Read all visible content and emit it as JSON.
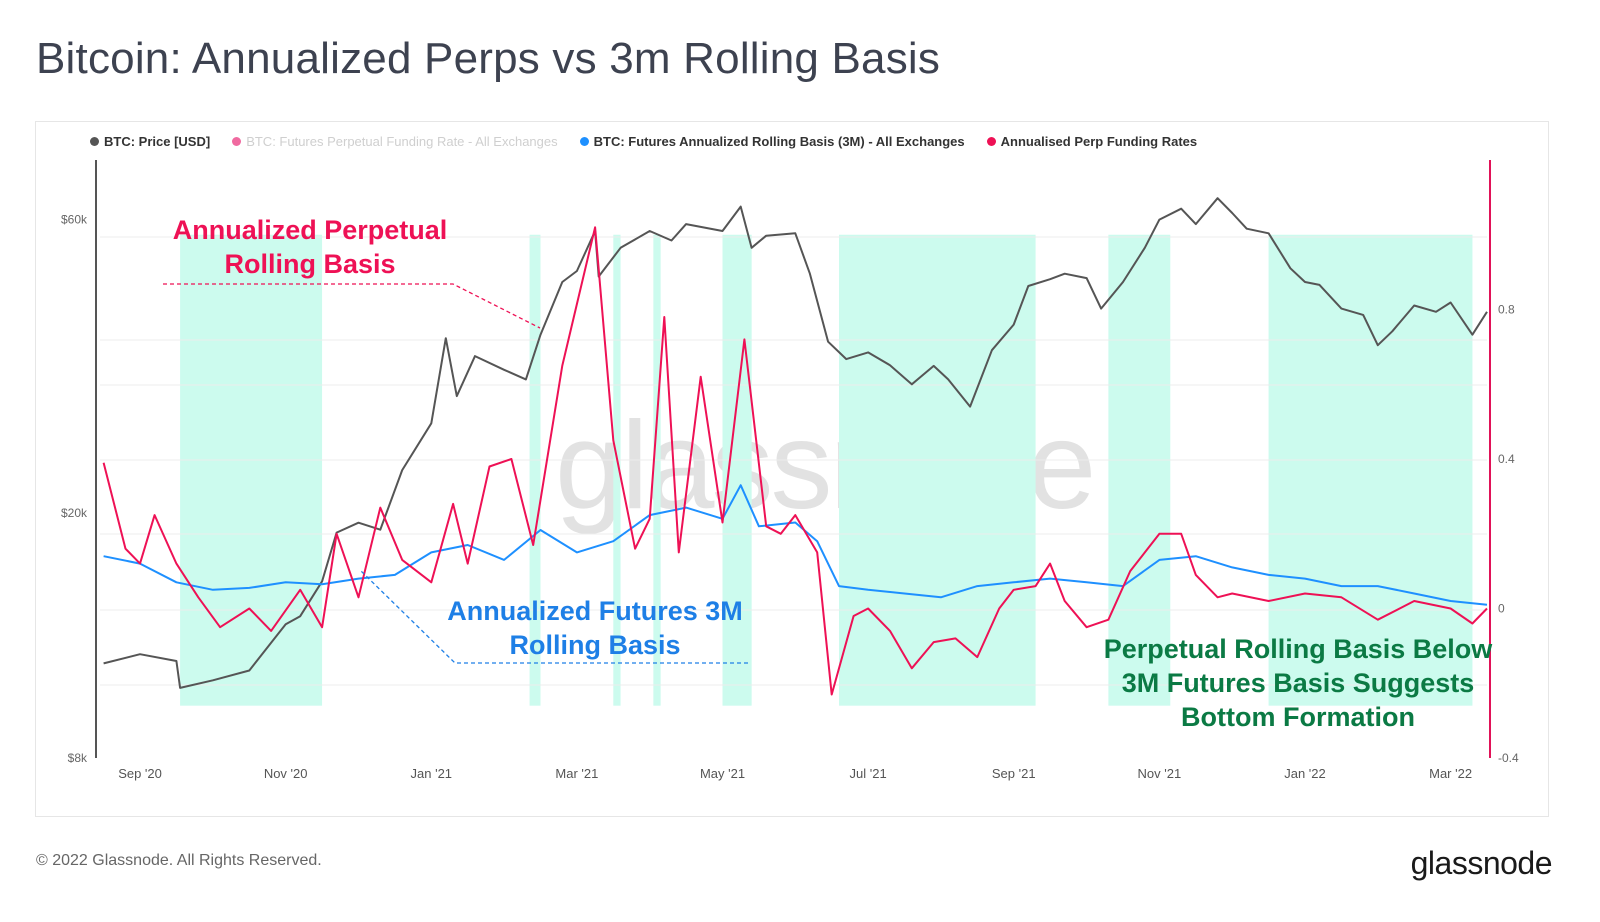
{
  "header": {
    "title": "Bitcoin: Annualized Perps vs 3m Rolling Basis"
  },
  "footer": {
    "copyright": "© 2022 Glassnode. All Rights Reserved.",
    "brand": "glassnode"
  },
  "watermark": "glassnode",
  "colors": {
    "price": "#555555",
    "perp": "#ee1155",
    "basis": "#1e90ff",
    "shade": "#ccfbee",
    "axis": "#e11258"
  },
  "chart_data": {
    "type": "line",
    "title": "Bitcoin: Annualized Perps vs 3m Rolling Basis",
    "legend": [
      {
        "label": "BTC: Price [USD]",
        "color": "#555555",
        "faded": false
      },
      {
        "label": "BTC: Futures Perpetual Funding Rate - All Exchanges",
        "color": "#ee1155",
        "faded": true
      },
      {
        "label": "BTC: Futures Annualized Rolling Basis (3M) - All Exchanges",
        "color": "#1e90ff",
        "faded": false
      },
      {
        "label": "Annualised Perp Funding Rates",
        "color": "#ee1155",
        "faded": false
      }
    ],
    "x_ticks": [
      "Sep '20",
      "Nov '20",
      "Jan '21",
      "Mar '21",
      "May '21",
      "Jul '21",
      "Sep '21",
      "Nov '21",
      "Jan '22",
      "Mar '22"
    ],
    "x_tick_months": [
      1,
      3,
      5,
      7,
      9,
      11,
      13,
      15,
      17,
      19
    ],
    "x_range_months": [
      0.45,
      19.5
    ],
    "y_left": {
      "scale": "log",
      "ticks": [
        "$8k",
        "$20k",
        "$60k"
      ],
      "tick_values": [
        8000,
        20000,
        60000
      ],
      "range": [
        8000,
        75000
      ]
    },
    "y_right": {
      "ticks": [
        "0.8",
        "0.4",
        "0",
        "-0.4"
      ],
      "tick_values": [
        0.8,
        0.4,
        0,
        -0.4
      ],
      "range": [
        -0.4,
        1.2
      ]
    },
    "series": [
      {
        "name": "BTC: Price [USD]",
        "axis": "left",
        "color": "#555555",
        "points": [
          [
            0.5,
            11400
          ],
          [
            1.0,
            11800
          ],
          [
            1.5,
            11500
          ],
          [
            1.55,
            10400
          ],
          [
            2.0,
            10700
          ],
          [
            2.5,
            11100
          ],
          [
            3.0,
            13200
          ],
          [
            3.2,
            13600
          ],
          [
            3.5,
            15500
          ],
          [
            3.7,
            18600
          ],
          [
            4.0,
            19300
          ],
          [
            4.3,
            18800
          ],
          [
            4.6,
            23500
          ],
          [
            5.0,
            28000
          ],
          [
            5.2,
            38500
          ],
          [
            5.35,
            31000
          ],
          [
            5.6,
            36000
          ],
          [
            6.0,
            34200
          ],
          [
            6.3,
            33000
          ],
          [
            6.5,
            39000
          ],
          [
            6.8,
            47500
          ],
          [
            7.0,
            49500
          ],
          [
            7.25,
            57500
          ],
          [
            7.3,
            48500
          ],
          [
            7.6,
            54000
          ],
          [
            8.0,
            57500
          ],
          [
            8.3,
            55500
          ],
          [
            8.5,
            59000
          ],
          [
            9.0,
            57500
          ],
          [
            9.25,
            63000
          ],
          [
            9.4,
            54000
          ],
          [
            9.6,
            56500
          ],
          [
            10.0,
            57000
          ],
          [
            10.2,
            49000
          ],
          [
            10.45,
            38000
          ],
          [
            10.7,
            35600
          ],
          [
            11.0,
            36500
          ],
          [
            11.3,
            34800
          ],
          [
            11.6,
            32400
          ],
          [
            11.9,
            34700
          ],
          [
            12.1,
            33000
          ],
          [
            12.4,
            29800
          ],
          [
            12.7,
            36800
          ],
          [
            13.0,
            40500
          ],
          [
            13.2,
            46800
          ],
          [
            13.5,
            48000
          ],
          [
            13.7,
            49000
          ],
          [
            14.0,
            48200
          ],
          [
            14.2,
            43000
          ],
          [
            14.5,
            47500
          ],
          [
            14.8,
            54000
          ],
          [
            15.0,
            60000
          ],
          [
            15.3,
            62500
          ],
          [
            15.5,
            59000
          ],
          [
            15.8,
            65000
          ],
          [
            16.0,
            61500
          ],
          [
            16.2,
            58000
          ],
          [
            16.5,
            57000
          ],
          [
            16.8,
            50000
          ],
          [
            17.0,
            47500
          ],
          [
            17.2,
            47000
          ],
          [
            17.5,
            43000
          ],
          [
            17.8,
            42000
          ],
          [
            18.0,
            37500
          ],
          [
            18.2,
            39500
          ],
          [
            18.5,
            43500
          ],
          [
            18.8,
            42500
          ],
          [
            19.0,
            44000
          ],
          [
            19.3,
            39000
          ],
          [
            19.5,
            42500
          ]
        ]
      },
      {
        "name": "BTC: Futures Annualized Rolling Basis (3M) - All Exchanges",
        "axis": "right",
        "color": "#1e90ff",
        "points": [
          [
            0.5,
            0.14
          ],
          [
            1.0,
            0.12
          ],
          [
            1.5,
            0.07
          ],
          [
            2.0,
            0.05
          ],
          [
            2.5,
            0.055
          ],
          [
            3.0,
            0.07
          ],
          [
            3.5,
            0.065
          ],
          [
            4.0,
            0.08
          ],
          [
            4.5,
            0.09
          ],
          [
            5.0,
            0.15
          ],
          [
            5.5,
            0.17
          ],
          [
            6.0,
            0.13
          ],
          [
            6.5,
            0.21
          ],
          [
            7.0,
            0.15
          ],
          [
            7.5,
            0.18
          ],
          [
            8.0,
            0.25
          ],
          [
            8.5,
            0.27
          ],
          [
            9.0,
            0.24
          ],
          [
            9.25,
            0.33
          ],
          [
            9.5,
            0.22
          ],
          [
            10.0,
            0.23
          ],
          [
            10.3,
            0.18
          ],
          [
            10.6,
            0.06
          ],
          [
            11.0,
            0.05
          ],
          [
            11.5,
            0.04
          ],
          [
            12.0,
            0.03
          ],
          [
            12.5,
            0.06
          ],
          [
            13.0,
            0.07
          ],
          [
            13.5,
            0.08
          ],
          [
            14.0,
            0.07
          ],
          [
            14.5,
            0.06
          ],
          [
            15.0,
            0.13
          ],
          [
            15.5,
            0.14
          ],
          [
            16.0,
            0.11
          ],
          [
            16.5,
            0.09
          ],
          [
            17.0,
            0.08
          ],
          [
            17.5,
            0.06
          ],
          [
            18.0,
            0.06
          ],
          [
            18.5,
            0.04
          ],
          [
            19.0,
            0.02
          ],
          [
            19.5,
            0.01
          ]
        ]
      },
      {
        "name": "Annualised Perp Funding Rates",
        "axis": "right",
        "color": "#ee1155",
        "points": [
          [
            0.5,
            0.39
          ],
          [
            0.8,
            0.16
          ],
          [
            1.0,
            0.12
          ],
          [
            1.2,
            0.25
          ],
          [
            1.5,
            0.12
          ],
          [
            1.8,
            0.03
          ],
          [
            2.1,
            -0.05
          ],
          [
            2.5,
            0.0
          ],
          [
            2.8,
            -0.06
          ],
          [
            3.2,
            0.05
          ],
          [
            3.5,
            -0.05
          ],
          [
            3.7,
            0.2
          ],
          [
            4.0,
            0.03
          ],
          [
            4.3,
            0.27
          ],
          [
            4.6,
            0.13
          ],
          [
            5.0,
            0.07
          ],
          [
            5.3,
            0.28
          ],
          [
            5.5,
            0.12
          ],
          [
            5.8,
            0.38
          ],
          [
            6.1,
            0.4
          ],
          [
            6.4,
            0.17
          ],
          [
            6.8,
            0.65
          ],
          [
            7.25,
            1.02
          ],
          [
            7.5,
            0.45
          ],
          [
            7.8,
            0.16
          ],
          [
            8.0,
            0.24
          ],
          [
            8.2,
            0.78
          ],
          [
            8.4,
            0.15
          ],
          [
            8.7,
            0.62
          ],
          [
            9.0,
            0.23
          ],
          [
            9.3,
            0.72
          ],
          [
            9.6,
            0.22
          ],
          [
            9.8,
            0.2
          ],
          [
            10.0,
            0.25
          ],
          [
            10.3,
            0.15
          ],
          [
            10.5,
            -0.23
          ],
          [
            10.8,
            -0.02
          ],
          [
            11.0,
            0.0
          ],
          [
            11.3,
            -0.06
          ],
          [
            11.6,
            -0.16
          ],
          [
            11.9,
            -0.09
          ],
          [
            12.2,
            -0.08
          ],
          [
            12.5,
            -0.13
          ],
          [
            12.8,
            0.0
          ],
          [
            13.0,
            0.05
          ],
          [
            13.3,
            0.06
          ],
          [
            13.5,
            0.12
          ],
          [
            13.7,
            0.02
          ],
          [
            14.0,
            -0.05
          ],
          [
            14.3,
            -0.03
          ],
          [
            14.6,
            0.1
          ],
          [
            15.0,
            0.2
          ],
          [
            15.3,
            0.2
          ],
          [
            15.5,
            0.09
          ],
          [
            15.8,
            0.03
          ],
          [
            16.0,
            0.04
          ],
          [
            16.5,
            0.02
          ],
          [
            17.0,
            0.04
          ],
          [
            17.5,
            0.03
          ],
          [
            18.0,
            -0.03
          ],
          [
            18.5,
            0.02
          ],
          [
            19.0,
            0.0
          ],
          [
            19.3,
            -0.04
          ],
          [
            19.5,
            0.0
          ]
        ]
      }
    ],
    "shaded_regions_months": [
      [
        1.55,
        3.5
      ],
      [
        6.35,
        6.5
      ],
      [
        7.5,
        7.6
      ],
      [
        8.05,
        8.15
      ],
      [
        9.0,
        9.4
      ],
      [
        10.6,
        13.3
      ],
      [
        14.3,
        15.15
      ],
      [
        16.5,
        19.3
      ]
    ],
    "annotations": [
      {
        "text": "Annualized Perpetual Rolling Basis",
        "color": "#ee1155"
      },
      {
        "text": "Annualized Futures 3M Rolling Basis",
        "color": "#1e7fe6"
      },
      {
        "text": "Perpetual Rolling Basis Below 3M Futures Basis Suggests Bottom Formation",
        "color": "#0b7a44"
      }
    ]
  }
}
